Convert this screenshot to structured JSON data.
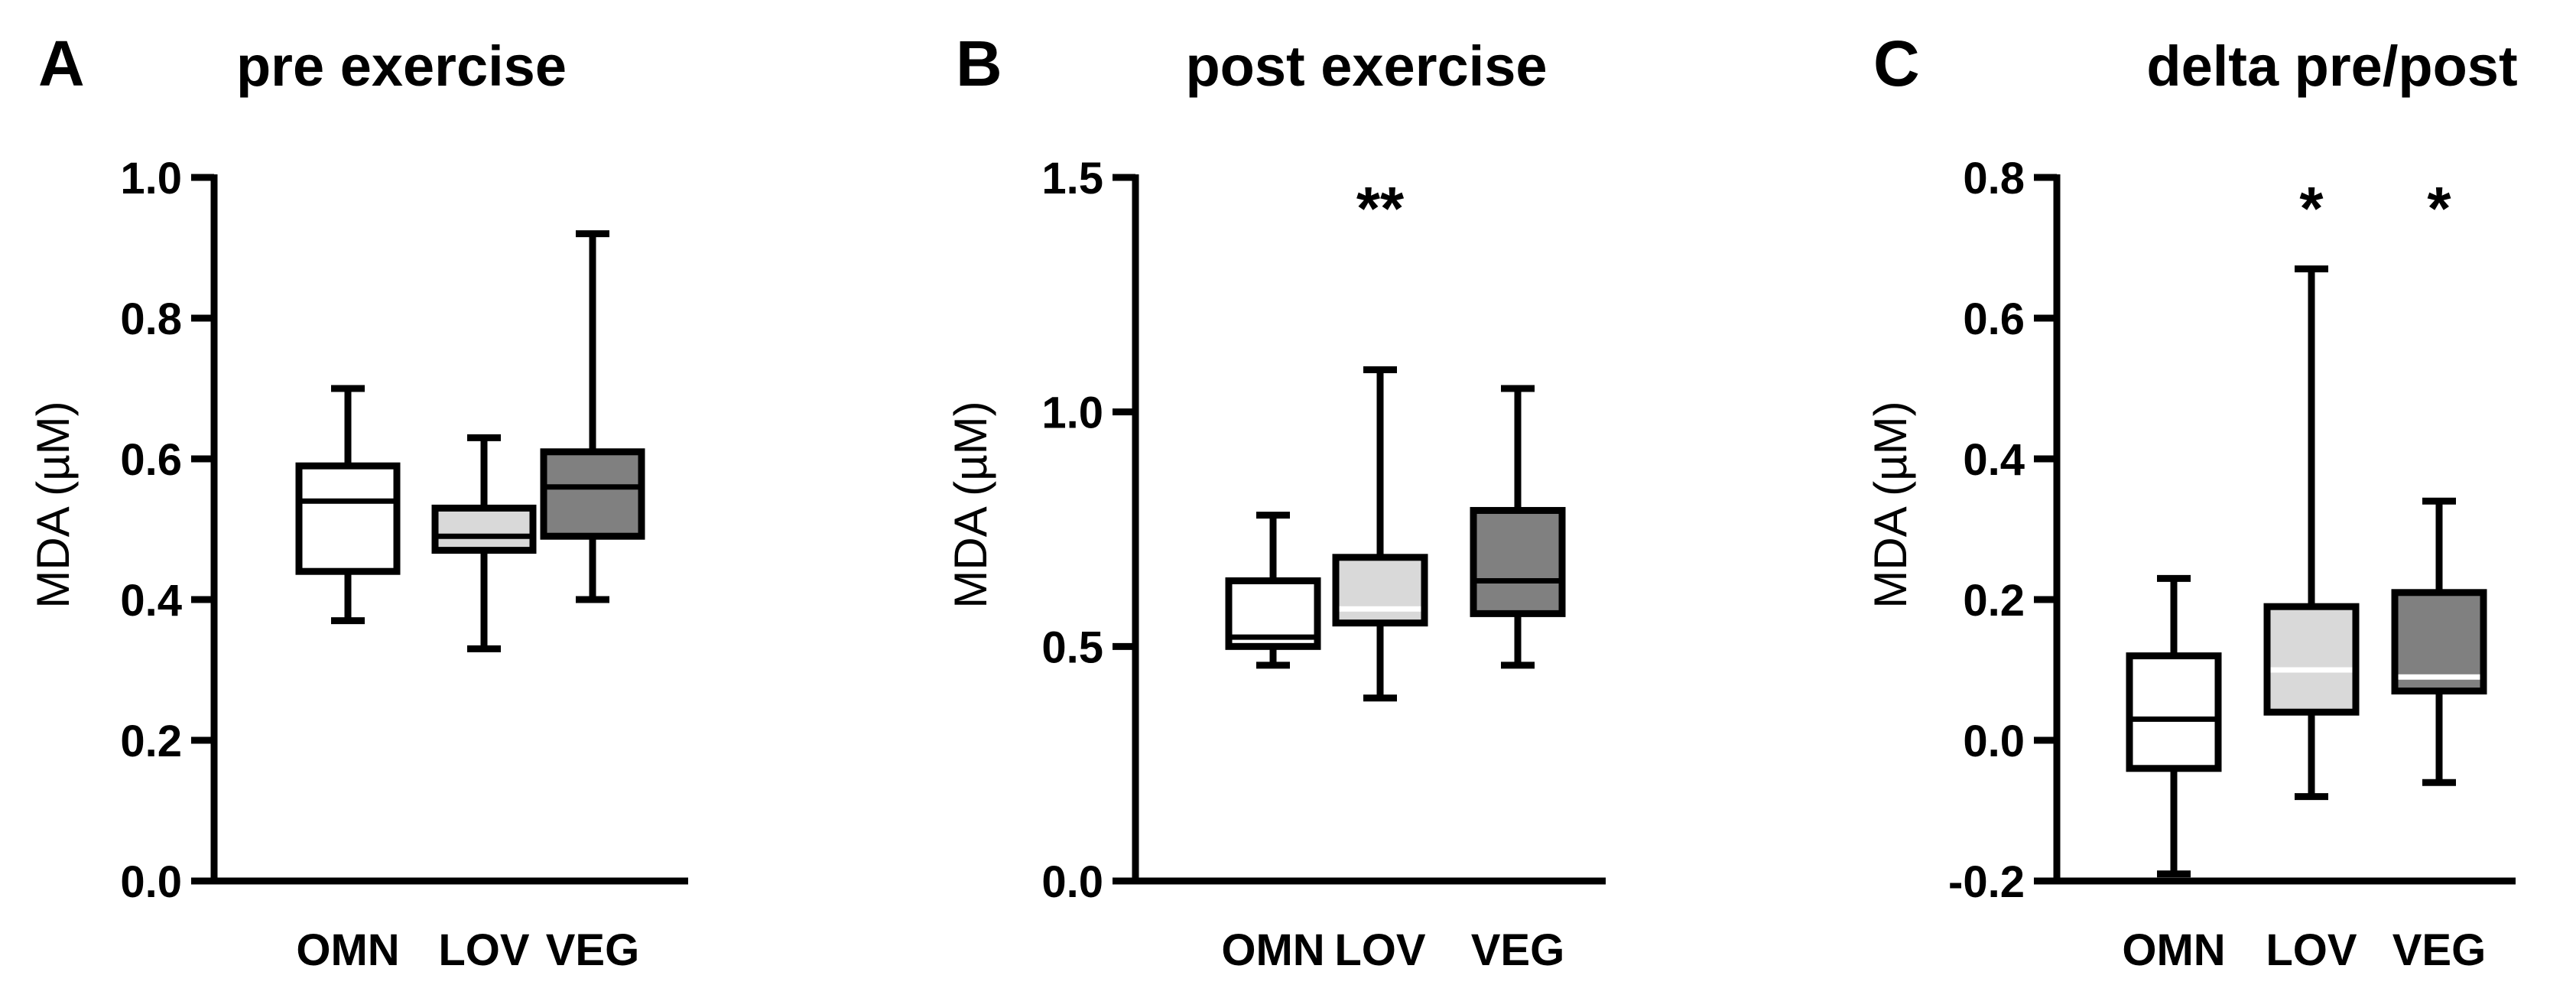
{
  "chart_data": [
    {
      "type": "box",
      "panel_letter": "A",
      "title": "pre exercise",
      "ylabel": "MDA (µM)",
      "ylim": [
        0.0,
        1.0
      ],
      "yticks": [
        0.0,
        0.2,
        0.4,
        0.6,
        0.8,
        1.0
      ],
      "ytick_labels": [
        "0.0",
        "0.2",
        "0.4",
        "0.6",
        "0.8",
        "1.0"
      ],
      "categories": [
        "OMN",
        "LOV",
        "VEG"
      ],
      "boxes": [
        {
          "category": "OMN",
          "min": 0.37,
          "q1": 0.44,
          "median": 0.54,
          "q3": 0.59,
          "max": 0.7,
          "fill": "#ffffff",
          "median_color": "#000000",
          "significance": ""
        },
        {
          "category": "LOV",
          "min": 0.33,
          "q1": 0.47,
          "median": 0.49,
          "q3": 0.53,
          "max": 0.63,
          "fill": "#d9d9d9",
          "median_color": "#000000",
          "significance": ""
        },
        {
          "category": "VEG",
          "min": 0.4,
          "q1": 0.49,
          "median": 0.56,
          "q3": 0.61,
          "max": 0.92,
          "fill": "#808080",
          "median_color": "#000000",
          "significance": ""
        }
      ]
    },
    {
      "type": "box",
      "panel_letter": "B",
      "title": "post exercise",
      "ylabel": "MDA (µM)",
      "ylim": [
        0.0,
        1.5
      ],
      "yticks": [
        0.0,
        0.5,
        1.0,
        1.5
      ],
      "ytick_labels": [
        "0.0",
        "0.5",
        "1.0",
        "1.5"
      ],
      "categories": [
        "OMN",
        "LOV",
        "VEG"
      ],
      "boxes": [
        {
          "category": "OMN",
          "min": 0.46,
          "q1": 0.5,
          "median": 0.52,
          "q3": 0.64,
          "max": 0.78,
          "fill": "#ffffff",
          "median_color": "#000000",
          "significance": ""
        },
        {
          "category": "LOV",
          "min": 0.39,
          "q1": 0.55,
          "median": 0.58,
          "q3": 0.69,
          "max": 1.09,
          "fill": "#d9d9d9",
          "median_color": "#ffffff",
          "significance": "**"
        },
        {
          "category": "VEG",
          "min": 0.46,
          "q1": 0.57,
          "median": 0.64,
          "q3": 0.79,
          "max": 1.05,
          "fill": "#808080",
          "median_color": "#000000",
          "significance": ""
        }
      ]
    },
    {
      "type": "box",
      "panel_letter": "C",
      "title": "delta pre/post",
      "ylabel": "MDA (µM)",
      "ylim": [
        -0.2,
        0.8
      ],
      "yticks": [
        -0.2,
        0.0,
        0.2,
        0.4,
        0.6,
        0.8
      ],
      "ytick_labels": [
        "-0.2",
        "0.0",
        "0.2",
        "0.4",
        "0.6",
        "0.8"
      ],
      "categories": [
        "OMN",
        "LOV",
        "VEG"
      ],
      "boxes": [
        {
          "category": "OMN",
          "min": -0.19,
          "q1": -0.04,
          "median": 0.03,
          "q3": 0.12,
          "max": 0.23,
          "fill": "#ffffff",
          "median_color": "#000000",
          "significance": ""
        },
        {
          "category": "LOV",
          "min": -0.08,
          "q1": 0.04,
          "median": 0.1,
          "q3": 0.19,
          "max": 0.67,
          "fill": "#d9d9d9",
          "median_color": "#ffffff",
          "significance": "*"
        },
        {
          "category": "VEG",
          "min": -0.06,
          "q1": 0.07,
          "median": 0.09,
          "q3": 0.21,
          "max": 0.34,
          "fill": "#808080",
          "median_color": "#ffffff",
          "significance": "*"
        }
      ]
    }
  ]
}
